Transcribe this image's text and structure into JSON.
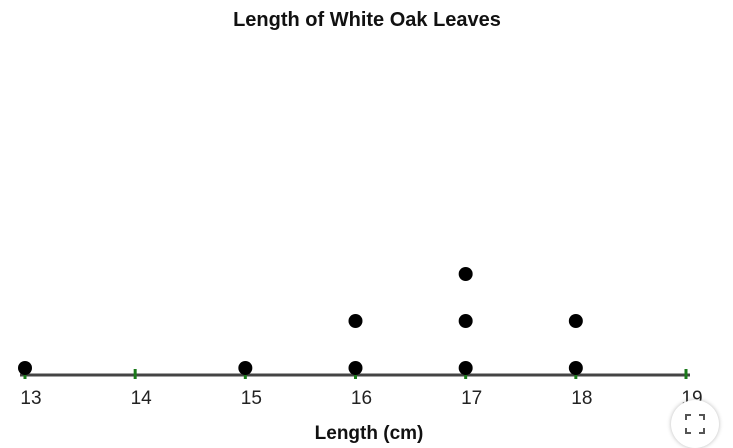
{
  "chart_data": {
    "type": "scatter",
    "title": "Length of White Oak Leaves",
    "xlabel": "Length (cm)",
    "ylabel": "",
    "xlim": [
      13,
      19
    ],
    "x_ticks": [
      "13",
      "14",
      "15",
      "16",
      "17",
      "18",
      "19"
    ],
    "x_tick_values": [
      13,
      14,
      15,
      16,
      17,
      18,
      19
    ],
    "points": [
      {
        "x": 13,
        "count": 1
      },
      {
        "x": 15,
        "count": 1
      },
      {
        "x": 16,
        "count": 2
      },
      {
        "x": 17,
        "count": 3
      },
      {
        "x": 18,
        "count": 2
      }
    ],
    "grid": false,
    "legend": "none",
    "colors": {
      "dot": "#000000",
      "axis": "#444444",
      "tick": "#1a7a1a"
    }
  },
  "controls": {
    "expand_icon": "expand-icon"
  }
}
